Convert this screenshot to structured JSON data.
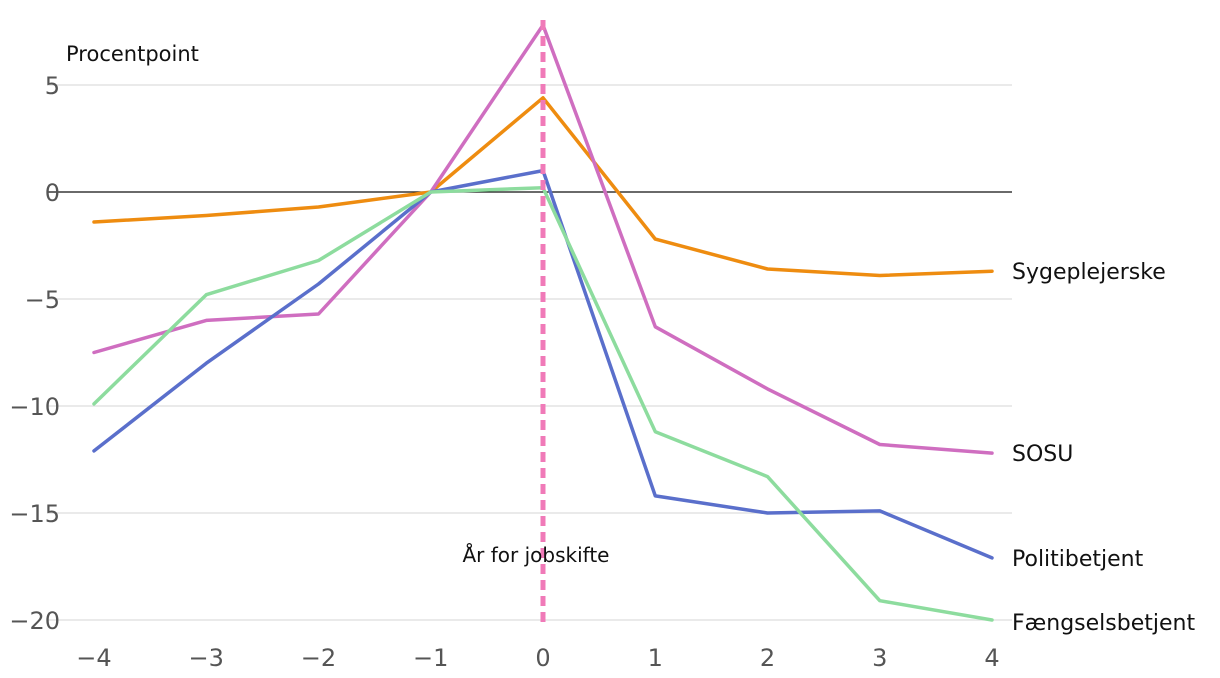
{
  "chart_data": {
    "type": "line",
    "ylabel": "Procentpoint",
    "x": [
      -4,
      -3,
      -2,
      -1,
      0,
      1,
      2,
      3,
      4
    ],
    "x_tick_labels": [
      "−4",
      "−3",
      "−2",
      "−1",
      "0",
      "1",
      "2",
      "3",
      "4"
    ],
    "yticks": [
      5,
      0,
      -5,
      -10,
      -15,
      -20
    ],
    "y_tick_labels": [
      "5",
      "0",
      "−5",
      "−10",
      "−15",
      "−20"
    ],
    "ylim": [
      -20,
      7.8
    ],
    "xlim": [
      -4,
      4
    ],
    "grid": true,
    "zero_line": true,
    "vertical_marker": {
      "x": 0,
      "label": "År for jobskifte",
      "color": "#f07ab8"
    },
    "series": [
      {
        "name": "Sygeplejerske",
        "color": "#ee8c10",
        "values": [
          -1.4,
          -1.1,
          -0.7,
          0,
          4.4,
          -2.2,
          -3.6,
          -3.9,
          -3.7
        ]
      },
      {
        "name": "SOSU",
        "color": "#cf6ec0",
        "values": [
          -7.5,
          -6.0,
          -5.7,
          0,
          7.8,
          -6.3,
          -9.2,
          -11.8,
          -12.2
        ]
      },
      {
        "name": "Politibetjent",
        "color": "#5a6fcb",
        "values": [
          -12.1,
          -8.0,
          -4.3,
          0,
          1.0,
          -14.2,
          -15.0,
          -14.9,
          -17.1
        ]
      },
      {
        "name": "Fængselsbetjent",
        "color": "#8ddc9e",
        "values": [
          -9.9,
          -4.8,
          -3.2,
          0,
          0.2,
          -11.2,
          -13.3,
          -19.1,
          -20.0
        ]
      }
    ]
  }
}
